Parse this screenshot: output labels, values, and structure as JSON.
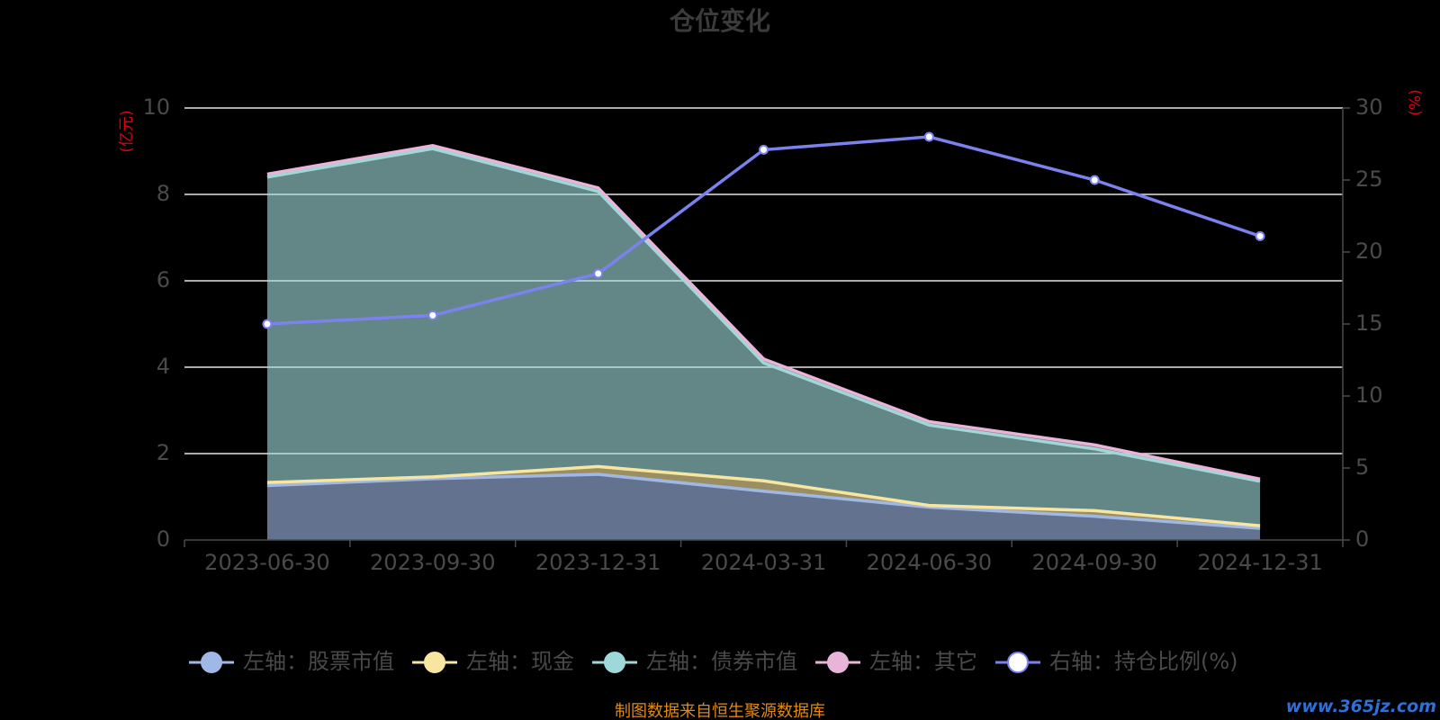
{
  "chart_data": {
    "type": "area",
    "title": "仓位变化",
    "left_unit": "(亿元)",
    "right_unit": "(%)",
    "categories": [
      "2023-06-30",
      "2023-09-30",
      "2023-12-31",
      "2024-03-31",
      "2024-06-30",
      "2024-09-30",
      "2024-12-31"
    ],
    "left_axis": {
      "ylim": [
        0,
        10
      ],
      "ticks": [
        "0",
        "2",
        "4",
        "6",
        "8",
        "10"
      ]
    },
    "right_axis": {
      "ylim": [
        0,
        30
      ],
      "ticks": [
        "0",
        "5",
        "10",
        "15",
        "20",
        "25",
        "30"
      ]
    },
    "stacked_series": [
      {
        "name": "左轴：股票市值",
        "color": "#9fb8e6",
        "values": [
          1.26,
          1.42,
          1.52,
          1.13,
          0.76,
          0.55,
          0.27
        ]
      },
      {
        "name": "左轴：现金",
        "color": "#f8e6a0",
        "values": [
          0.07,
          0.04,
          0.18,
          0.24,
          0.04,
          0.13,
          0.06
        ]
      },
      {
        "name": "左轴：债券市值",
        "color": "#9fd8d8",
        "values": [
          7.07,
          7.6,
          6.37,
          2.73,
          1.86,
          1.43,
          1.03
        ]
      },
      {
        "name": "左轴：其它",
        "color": "#e8b4d8",
        "values": [
          0.07,
          0.07,
          0.08,
          0.09,
          0.08,
          0.09,
          0.05
        ]
      }
    ],
    "line_series": {
      "name": "右轴：持仓比例(%)",
      "color": "#7b82ee",
      "values": [
        15.0,
        15.6,
        18.5,
        27.1,
        28.0,
        25.0,
        21.1
      ]
    },
    "grid": true,
    "legend_position": "bottom"
  },
  "footer": {
    "source": "制图数据来自恒生聚源数据库",
    "watermark": "www.365jz.com"
  }
}
